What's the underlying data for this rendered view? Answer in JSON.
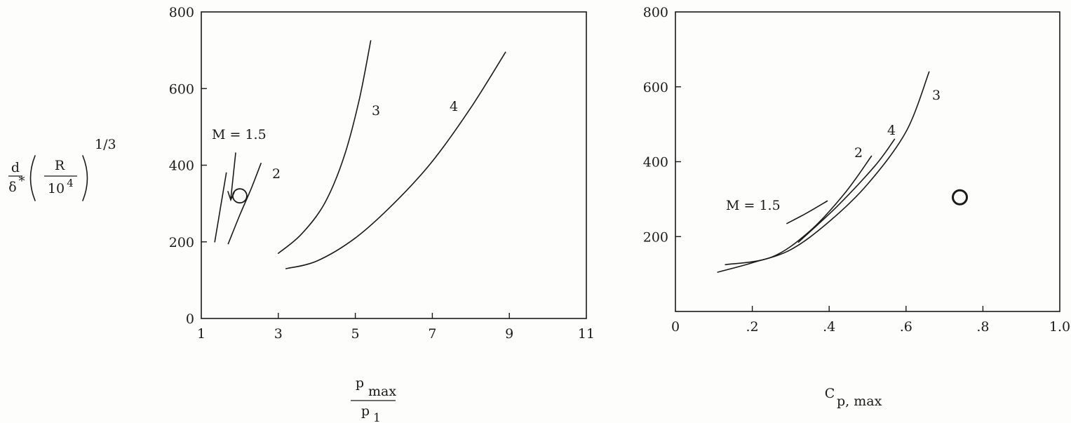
{
  "ylabel": {
    "d": "d",
    "delta": "δ",
    "star": "*",
    "R": "R",
    "ten": "10",
    "four": "4",
    "exponent": "1/3"
  },
  "xlabel_left": {
    "p": "p",
    "max": "max",
    "p1_p": "p",
    "p1_sub": "1"
  },
  "xlabel_right": {
    "C": "C",
    "sub": "p, max"
  },
  "chart_data": [
    {
      "type": "line",
      "title": "",
      "xlabel": "p_max / p_1",
      "ylabel": "d/δ* (R/10^4)^(1/3)",
      "xlim": [
        1,
        11
      ],
      "ylim": [
        0,
        800
      ],
      "xticks": [
        "1",
        "3",
        "5",
        "7",
        "9",
        "11"
      ],
      "yticks": [
        "0",
        "200",
        "400",
        "600",
        "800"
      ],
      "series": [
        {
          "name": "M = 1.5",
          "x": [
            1.35,
            1.5,
            1.65
          ],
          "y": [
            200,
            290,
            380
          ]
        },
        {
          "name": "2",
          "x": [
            1.7,
            2.0,
            2.3,
            2.55
          ],
          "y": [
            195,
            270,
            340,
            405
          ]
        },
        {
          "name": "3",
          "x": [
            3.0,
            3.6,
            4.2,
            4.7,
            5.1,
            5.4
          ],
          "y": [
            170,
            220,
            300,
            420,
            570,
            725
          ]
        },
        {
          "name": "4",
          "x": [
            3.2,
            4.0,
            5.0,
            6.0,
            7.0,
            8.0,
            8.9
          ],
          "y": [
            130,
            150,
            210,
            300,
            410,
            550,
            695
          ]
        }
      ],
      "points": [
        {
          "x": 2.0,
          "y": 320
        }
      ],
      "annotations": {
        "m15": "M = 1.5",
        "label2": "2",
        "label3": "3",
        "label4": "4"
      }
    },
    {
      "type": "line",
      "title": "",
      "xlabel": "C_p, max",
      "ylabel": "",
      "xlim": [
        0,
        1.0
      ],
      "ylim": [
        0,
        800
      ],
      "xticks": [
        "0",
        ".2",
        ".4",
        ".6",
        ".8",
        "1.0"
      ],
      "yticks": [
        "200",
        "400",
        "600",
        "800"
      ],
      "series": [
        {
          "name": "M = 1.5",
          "x": [
            0.29,
            0.34,
            0.395
          ],
          "y": [
            235,
            262,
            295
          ]
        },
        {
          "name": "2",
          "x": [
            0.13,
            0.25,
            0.35,
            0.44,
            0.51
          ],
          "y": [
            125,
            145,
            215,
            315,
            415
          ]
        },
        {
          "name": "4",
          "x": [
            0.32,
            0.42,
            0.52,
            0.57
          ],
          "y": [
            185,
            280,
            390,
            460
          ]
        },
        {
          "name": "3",
          "x": [
            0.11,
            0.2,
            0.3,
            0.4,
            0.5,
            0.6,
            0.66
          ],
          "y": [
            105,
            130,
            165,
            240,
            340,
            480,
            640
          ]
        }
      ],
      "points": [
        {
          "x": 0.74,
          "y": 305
        }
      ],
      "annotations": {
        "m15": "M = 1.5",
        "label2": "2",
        "label3": "3",
        "label4": "4"
      }
    }
  ]
}
